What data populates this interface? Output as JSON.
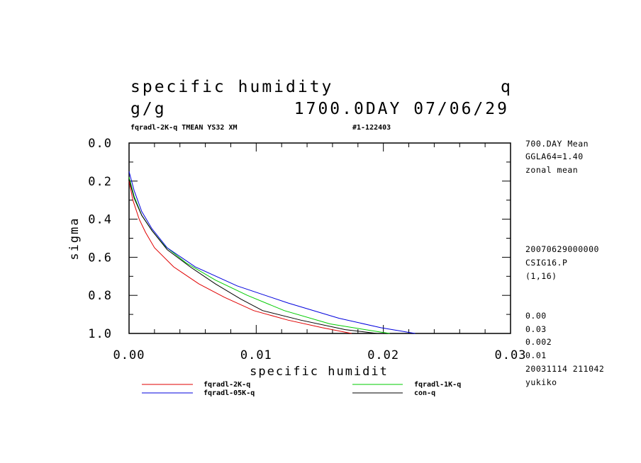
{
  "header": {
    "title": "specific humidity",
    "var_name": "q",
    "units": "g/g",
    "time": "1700.0DAY 07/06/29",
    "run_info": "fqradl-2K-q TMEAN YS32 XM",
    "run_id": "#1-122403"
  },
  "side_info": {
    "top": [
      "700.DAY Mean",
      "GGLA64=1.40",
      "zonal mean"
    ],
    "middle": [
      "20070629000000",
      "CSIG16.P",
      "(1,16)"
    ],
    "bottom": [
      "0.00",
      "0.03",
      "0.002",
      "0.01",
      "20031114 211042",
      "yukiko"
    ]
  },
  "chart_data": {
    "type": "line",
    "xlabel": "specific humidit",
    "ylabel": "sigma",
    "xlim": [
      0.0,
      0.03
    ],
    "ylim": [
      0.0,
      1.0
    ],
    "y_inverted": true,
    "x_ticks": [
      "0.00",
      "0.01",
      "0.02",
      "0.03"
    ],
    "y_ticks": [
      "0.0",
      "0.2",
      "0.4",
      "0.6",
      "0.8",
      "1.0"
    ],
    "grid": false,
    "legend_position": "bottom",
    "series": [
      {
        "name": "fqradl-2K-q",
        "color": "#e00000",
        "x": [
          0.0,
          0.0003,
          0.0008,
          0.0013,
          0.002,
          0.0035,
          0.0055,
          0.0075,
          0.0098,
          0.0125,
          0.0152,
          0.0175
        ],
        "y": [
          0.2,
          0.3,
          0.4,
          0.47,
          0.55,
          0.65,
          0.74,
          0.81,
          0.88,
          0.93,
          0.97,
          1.0
        ]
      },
      {
        "name": "fqradl-1K-q",
        "color": "#00cc00",
        "x": [
          0.0,
          0.0004,
          0.001,
          0.0018,
          0.0028,
          0.0045,
          0.0068,
          0.0093,
          0.0122,
          0.0158,
          0.0195,
          0.0205
        ],
        "y": [
          0.18,
          0.28,
          0.38,
          0.46,
          0.54,
          0.63,
          0.72,
          0.8,
          0.88,
          0.95,
          0.99,
          1.0
        ]
      },
      {
        "name": "fqradl-05K-q",
        "color": "#0000dd",
        "x": [
          0.0,
          0.0004,
          0.001,
          0.0018,
          0.003,
          0.0052,
          0.0085,
          0.0125,
          0.0165,
          0.0198,
          0.0225
        ],
        "y": [
          0.15,
          0.25,
          0.36,
          0.45,
          0.55,
          0.65,
          0.75,
          0.84,
          0.92,
          0.97,
          1.0
        ]
      },
      {
        "name": "con-q",
        "color": "#000000",
        "x": [
          0.0,
          0.0004,
          0.001,
          0.0018,
          0.003,
          0.0048,
          0.0068,
          0.0088,
          0.0105,
          0.0135,
          0.017,
          0.0195
        ],
        "y": [
          0.19,
          0.29,
          0.38,
          0.46,
          0.56,
          0.65,
          0.74,
          0.82,
          0.88,
          0.93,
          0.98,
          1.0
        ]
      }
    ]
  }
}
